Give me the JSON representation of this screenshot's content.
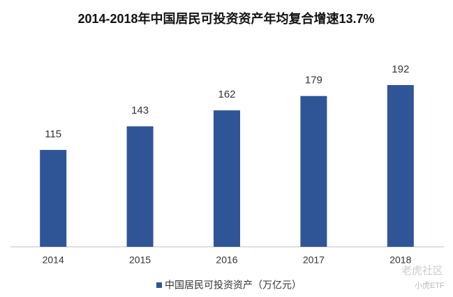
{
  "chart_data": {
    "type": "bar",
    "title": "2014-2018年中国居民可投资资产年均复合增速13.7%",
    "categories": [
      "2014",
      "2015",
      "2016",
      "2017",
      "2018"
    ],
    "series": [
      {
        "name": "中国居民可投资资产（万亿元）",
        "color": "#2f5597",
        "values": [
          115,
          143,
          162,
          179,
          192
        ]
      }
    ],
    "legend": "bottom",
    "watermark": [
      "老虎社区",
      "小虎ETF"
    ]
  }
}
